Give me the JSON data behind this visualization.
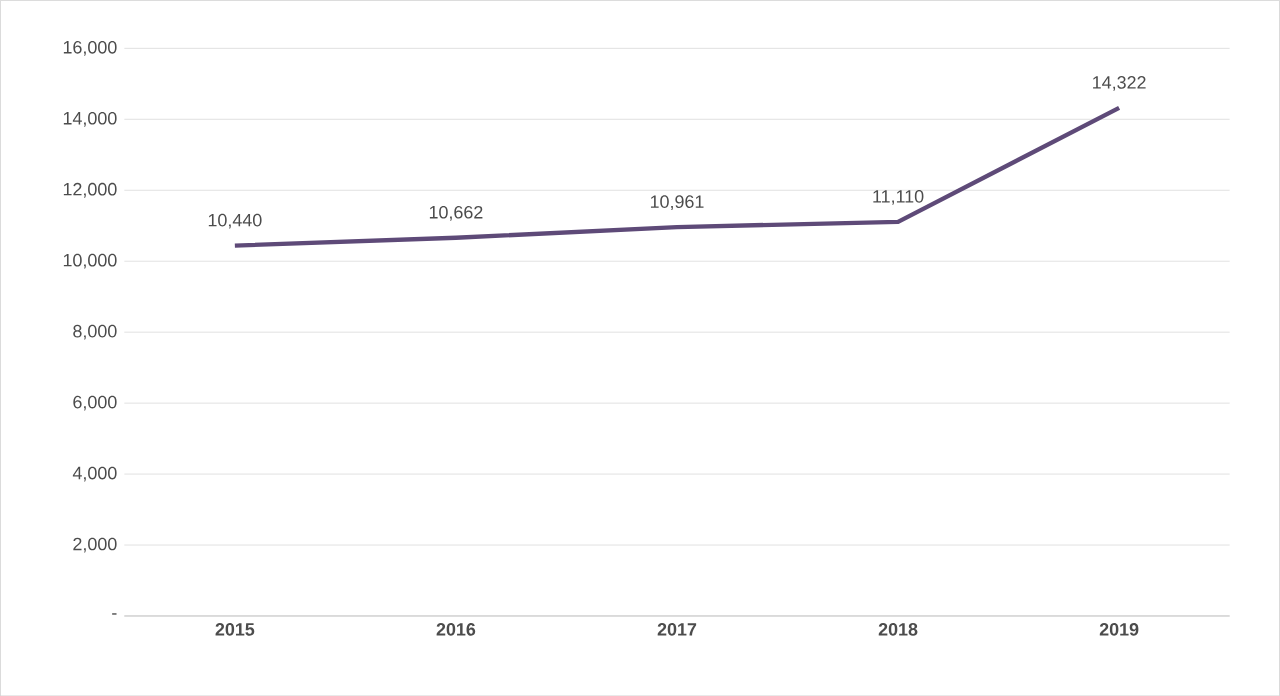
{
  "chart_data": {
    "type": "line",
    "categories": [
      "2015",
      "2016",
      "2017",
      "2018",
      "2019"
    ],
    "values": [
      10440,
      10662,
      10961,
      11110,
      14322
    ],
    "value_labels": [
      "10,440",
      "10,662",
      "10,961",
      "11,110",
      "14,322"
    ],
    "color": "#5e4a78",
    "marker": "none",
    "line_style": "solid",
    "ylim": [
      0,
      16000
    ],
    "yticks": [
      {
        "value": 0,
        "label": "-"
      },
      {
        "value": 2000,
        "label": "2,000"
      },
      {
        "value": 4000,
        "label": "4,000"
      },
      {
        "value": 6000,
        "label": "6,000"
      },
      {
        "value": 8000,
        "label": "8,000"
      },
      {
        "value": 10000,
        "label": "10,000"
      },
      {
        "value": 12000,
        "label": "12,000"
      },
      {
        "value": 14000,
        "label": "14,000"
      },
      {
        "value": 16000,
        "label": "16,000"
      }
    ],
    "grid": "y"
  }
}
